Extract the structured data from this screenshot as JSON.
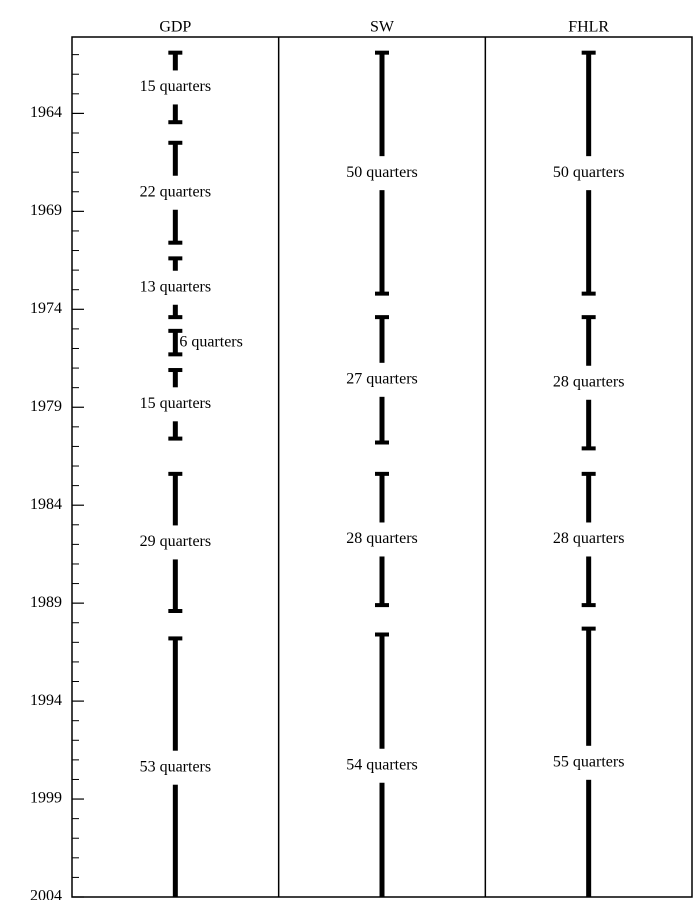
{
  "chart_data": {
    "type": "timeline",
    "ylim": [
      1960.1,
      2004
    ],
    "yticks": [
      1964,
      1969,
      1974,
      1979,
      1984,
      1989,
      1994,
      1999,
      2004
    ],
    "minor_yticks": [
      1961,
      1962,
      1963,
      1965,
      1966,
      1967,
      1968,
      1970,
      1971,
      1972,
      1973,
      1975,
      1976,
      1977,
      1978,
      1980,
      1981,
      1982,
      1983,
      1985,
      1986,
      1987,
      1988,
      1990,
      1991,
      1992,
      1993,
      1995,
      1996,
      1997,
      1998,
      2000,
      2001,
      2002,
      2003
    ],
    "color": "#000000",
    "series": [
      {
        "name": "GDP",
        "starts": [
          1960.9,
          1965.5,
          1971.4,
          1975.1,
          1977.1,
          1982.4,
          1990.8
        ],
        "ends": [
          1964.45,
          1970.6,
          1974.4,
          1976.3,
          1980.6,
          1989.4,
          2004
        ],
        "labels": [
          "15 quarters",
          "22 quarters",
          "13 quarters",
          "6 quarters",
          "15 quarters",
          "29 quarters",
          "53 quarters"
        ]
      },
      {
        "name": "SW",
        "starts": [
          1960.9,
          1974.4,
          1982.4,
          1990.6
        ],
        "ends": [
          1973.2,
          1980.8,
          1989.1,
          2004
        ],
        "labels": [
          "50 quarters",
          "27 quarters",
          "28 quarters",
          "54 quarters"
        ]
      },
      {
        "name": "FHLR",
        "starts": [
          1960.9,
          1974.4,
          1982.4,
          1990.3
        ],
        "ends": [
          1973.2,
          1981.1,
          1989.1,
          2004
        ],
        "labels": [
          "50 quarters",
          "28 quarters",
          "28 quarters",
          "55 quarters"
        ]
      }
    ]
  }
}
